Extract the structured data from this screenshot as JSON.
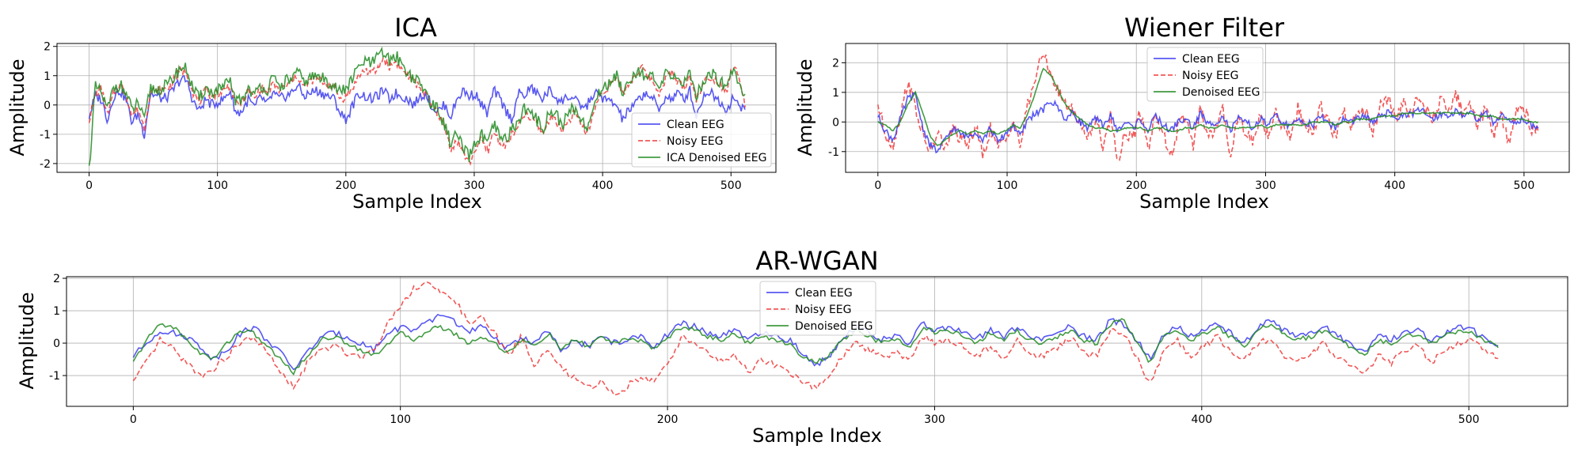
{
  "colors": {
    "clean": "#3b3bf0",
    "noisy": "#f03b3b",
    "denoised": "#228b22",
    "grid": "#b0b0b0"
  },
  "chart_data": [
    {
      "id": "ica",
      "type": "line",
      "title": "ICA",
      "xlabel": "Sample Index",
      "ylabel": "Amplitude",
      "xlim": [
        -25,
        535
      ],
      "ylim": [
        -2.3,
        2.1
      ],
      "xticks": [
        0,
        100,
        200,
        300,
        400,
        500
      ],
      "yticks": [
        -2,
        -1,
        0,
        1,
        2
      ],
      "grid": true,
      "legend_position": "lower-right",
      "n_samples": 512,
      "series": [
        {
          "name": "Clean EEG",
          "color": "#3b3bf0",
          "style": "solid",
          "values": [
            -0.4,
            0.3,
            0.2,
            -0.5,
            0.3,
            0.5,
            0.2,
            -0.6,
            -0.3,
            -1.0,
            0.4,
            0.3,
            0.2,
            0.3,
            0.6,
            0.9,
            0.8,
            0.1,
            -0.2,
            0.2,
            0.0,
            0.1,
            0.2,
            0.5,
            -0.3,
            -0.2,
            0.2,
            -0.1,
            0.3,
            0.0,
            0.4,
            0.2,
            0.3,
            0.4,
            0.7,
            0.3,
            0.4,
            0.5,
            0.4,
            0.3,
            0.2,
            -0.3,
            -0.5,
            0.0,
            0.4,
            0.3,
            0.2,
            0.3,
            0.5,
            0.2,
            0.4,
            0.3,
            0.2,
            0.0,
            0.3,
            0.4,
            -0.1,
            -0.2,
            0.0,
            -0.4,
            0.2,
            0.5,
            0.3,
            0.4,
            0.0,
            -0.3,
            0.5,
            0.2,
            -0.2,
            -0.5,
            0.4,
            0.3,
            0.6,
            0.4,
            0.2,
            0.5,
            0.3,
            0.1,
            0.3,
            0.2,
            0.0,
            -0.1,
            0.3,
            0.4,
            0.2,
            0.1,
            0.0,
            -0.5,
            -0.2,
            0.0,
            0.3,
            0.4,
            0.2,
            -0.2,
            0.3,
            0.2,
            0.4,
            0.2,
            0.5,
            -0.4,
            0.2,
            0.5,
            0.3,
            0.1,
            -0.2,
            0.3,
            -0.1,
            0.0
          ]
        },
        {
          "name": "Noisy EEG",
          "color": "#f03b3b",
          "style": "dashed",
          "values": [
            -0.5,
            0.3,
            0.6,
            -0.4,
            0.4,
            0.7,
            0.4,
            -0.4,
            -0.1,
            -0.8,
            0.5,
            0.5,
            0.5,
            0.6,
            0.9,
            1.2,
            1.1,
            0.4,
            0.1,
            0.5,
            0.3,
            0.4,
            0.5,
            0.7,
            0.0,
            0.1,
            0.5,
            0.2,
            0.6,
            0.4,
            0.7,
            0.5,
            0.6,
            0.8,
            1.0,
            0.6,
            0.8,
            0.9,
            0.8,
            0.7,
            0.6,
            0.2,
            0.3,
            0.6,
            1.0,
            1.2,
            1.1,
            1.2,
            1.6,
            1.3,
            1.5,
            1.2,
            1.0,
            0.8,
            0.6,
            0.3,
            -0.1,
            -0.3,
            -0.8,
            -1.5,
            -1.2,
            -1.6,
            -2.0,
            -1.5,
            -1.2,
            -1.6,
            -0.9,
            -1.3,
            -1.4,
            -1.0,
            -0.8,
            -0.3,
            -0.5,
            -0.6,
            -1.0,
            -0.5,
            -0.4,
            -0.9,
            -0.6,
            -0.3,
            -0.5,
            -1.0,
            -0.5,
            0.2,
            0.5,
            0.7,
            0.9,
            0.4,
            0.7,
            1.0,
            1.3,
            1.0,
            0.8,
            0.4,
            0.9,
            1.1,
            0.8,
            0.6,
            1.0,
            0.2,
            0.6,
            1.0,
            0.9,
            0.7,
            0.5,
            1.4,
            0.9,
            0.0
          ]
        },
        {
          "name": "ICA Denoised EEG",
          "color": "#228b22",
          "style": "solid",
          "values": [
            -2.2,
            0.6,
            0.4,
            -0.2,
            0.6,
            0.7,
            0.4,
            -0.2,
            0.1,
            -0.6,
            0.6,
            0.5,
            0.6,
            0.7,
            1.0,
            1.3,
            1.2,
            0.5,
            0.2,
            0.6,
            0.4,
            0.5,
            0.6,
            0.8,
            0.1,
            0.2,
            0.6,
            0.3,
            0.7,
            0.5,
            0.9,
            0.6,
            0.8,
            0.9,
            1.1,
            0.8,
            0.9,
            1.0,
            0.9,
            0.8,
            0.7,
            0.4,
            0.6,
            0.9,
            1.3,
            1.5,
            1.4,
            1.6,
            1.8,
            1.5,
            1.7,
            1.4,
            1.1,
            0.9,
            0.7,
            0.4,
            0.0,
            -0.2,
            -0.7,
            -1.3,
            -1.0,
            -1.5,
            -1.8,
            -1.3,
            -1.0,
            -1.4,
            -0.7,
            -1.1,
            -1.2,
            -0.8,
            -0.6,
            -0.1,
            -0.3,
            -0.5,
            -0.8,
            -0.3,
            -0.2,
            -0.7,
            -0.4,
            -0.1,
            -0.3,
            -0.8,
            -0.4,
            0.4,
            0.6,
            0.8,
            1.0,
            0.5,
            0.8,
            1.1,
            1.2,
            0.9,
            0.9,
            0.5,
            1.0,
            1.1,
            0.9,
            0.7,
            1.1,
            0.3,
            0.7,
            1.1,
            1.0,
            0.8,
            0.6,
            1.3,
            0.8,
            0.3
          ]
        }
      ]
    },
    {
      "id": "wiener",
      "type": "line",
      "title": "Wiener Filter",
      "xlabel": "Sample Index",
      "ylabel": "Amplitude",
      "xlim": [
        -25,
        535
      ],
      "ylim": [
        -1.7,
        2.65
      ],
      "xticks": [
        0,
        100,
        200,
        300,
        400,
        500
      ],
      "yticks": [
        -1,
        0,
        1,
        2
      ],
      "grid": true,
      "legend_position": "upper-center",
      "n_samples": 512,
      "series": [
        {
          "name": "Clean EEG",
          "color": "#3b3bf0",
          "style": "solid",
          "values": [
            0.2,
            -0.3,
            -0.6,
            0.1,
            0.8,
            0.9,
            -0.2,
            -0.8,
            -1.0,
            -0.6,
            -0.2,
            -0.4,
            -0.5,
            -0.3,
            -0.6,
            -0.2,
            -0.7,
            -0.4,
            -0.1,
            -0.5,
            0.1,
            0.3,
            0.4,
            0.7,
            0.5,
            0.1,
            0.3,
            0.0,
            -0.2,
            0.1,
            -0.1,
            0.2,
            -0.3,
            0.0,
            -0.2,
            0.1,
            -0.3,
            0.2,
            -0.1,
            -0.3,
            0.0,
            0.1,
            -0.2,
            0.3,
            -0.1,
            0.0,
            0.2,
            -0.3,
            0.1,
            0.0,
            -0.2,
            0.1,
            -0.1,
            0.2,
            0.0,
            -0.2,
            0.1,
            0.0,
            -0.1,
            0.2,
            0.0,
            -0.2,
            0.1,
            0.0,
            0.1,
            0.2,
            0.0,
            0.2,
            0.3,
            0.1,
            0.3,
            0.2,
            0.4,
            0.3,
            0.1,
            0.3,
            0.2,
            0.4,
            0.2,
            0.3,
            0.1,
            0.3,
            0.0,
            0.2,
            0.1,
            0.0,
            0.1,
            -0.1,
            -0.2
          ]
        },
        {
          "name": "Noisy EEG",
          "color": "#f03b3b",
          "style": "dashed",
          "values": [
            0.6,
            -0.4,
            -0.8,
            0.2,
            1.4,
            0.5,
            -0.5,
            -1.0,
            -0.4,
            -0.9,
            -0.2,
            -0.6,
            -0.8,
            -0.1,
            -1.2,
            -0.2,
            -0.9,
            -0.6,
            0.1,
            -0.8,
            0.6,
            1.5,
            2.3,
            1.7,
            1.0,
            0.6,
            0.4,
            -0.1,
            -0.5,
            0.1,
            -0.8,
            0.2,
            -1.3,
            -0.3,
            -0.6,
            0.4,
            -0.9,
            0.3,
            -0.4,
            -1.2,
            -0.2,
            0.2,
            -0.8,
            0.5,
            -0.6,
            -0.2,
            0.4,
            -1.1,
            0.2,
            -0.3,
            -0.7,
            0.3,
            -0.5,
            0.4,
            -0.2,
            -0.6,
            0.5,
            -0.3,
            -0.4,
            0.6,
            0.0,
            -0.5,
            0.4,
            -0.2,
            0.5,
            0.3,
            -0.4,
            0.6,
            0.8,
            0.0,
            0.7,
            0.2,
            0.9,
            0.4,
            0.1,
            0.8,
            0.3,
            1.0,
            0.2,
            0.6,
            -0.1,
            0.5,
            -0.5,
            0.4,
            -0.7,
            0.3,
            0.6,
            -0.2,
            -0.3
          ]
        },
        {
          "name": "Denoised EEG",
          "color": "#228b22",
          "style": "solid",
          "values": [
            0.0,
            -0.1,
            -0.3,
            0.0,
            0.6,
            1.0,
            0.3,
            -0.5,
            -0.8,
            -0.6,
            -0.4,
            -0.3,
            -0.4,
            -0.3,
            -0.4,
            -0.3,
            -0.4,
            -0.3,
            -0.1,
            -0.2,
            0.3,
            1.0,
            1.8,
            1.6,
            1.1,
            0.6,
            0.3,
            0.1,
            -0.1,
            -0.2,
            -0.2,
            -0.3,
            -0.3,
            -0.2,
            -0.2,
            -0.2,
            -0.3,
            -0.2,
            -0.2,
            -0.3,
            -0.3,
            -0.2,
            -0.2,
            -0.1,
            -0.2,
            -0.2,
            -0.1,
            -0.2,
            -0.2,
            -0.2,
            -0.2,
            -0.1,
            -0.2,
            -0.1,
            -0.1,
            -0.1,
            -0.1,
            -0.1,
            0.0,
            0.0,
            0.0,
            -0.1,
            0.0,
            0.0,
            0.1,
            0.1,
            0.1,
            0.2,
            0.2,
            0.2,
            0.3,
            0.3,
            0.3,
            0.3,
            0.3,
            0.3,
            0.3,
            0.3,
            0.3,
            0.3,
            0.2,
            0.2,
            0.2,
            0.1,
            0.1,
            0.1,
            0.1,
            0.0,
            0.0
          ]
        }
      ]
    },
    {
      "id": "arwgan",
      "type": "line",
      "title": "AR-WGAN",
      "xlabel": "Sample Index",
      "ylabel": "Amplitude",
      "xlim": [
        -25,
        537
      ],
      "ylim": [
        -1.95,
        2.05
      ],
      "xticks": [
        0,
        100,
        200,
        300,
        400,
        500
      ],
      "yticks": [
        -1,
        0,
        1,
        2
      ],
      "grid": true,
      "legend_position": "upper-center",
      "n_samples": 512,
      "series": [
        {
          "name": "Clean EEG",
          "color": "#3b3bf0",
          "style": "solid",
          "values": [
            -0.4,
            0.0,
            0.4,
            0.3,
            0.2,
            -0.1,
            -0.5,
            -0.2,
            0.3,
            0.5,
            0.1,
            -0.3,
            -0.8,
            -0.3,
            0.2,
            0.3,
            0.2,
            0.0,
            -0.2,
            0.3,
            0.5,
            0.4,
            0.6,
            0.9,
            0.7,
            0.3,
            0.5,
            0.2,
            -0.2,
            0.2,
            0.0,
            0.4,
            -0.3,
            0.1,
            -0.1,
            0.2,
            0.0,
            0.1,
            0.2,
            -0.1,
            0.3,
            0.6,
            0.5,
            0.3,
            0.2,
            0.4,
            0.1,
            0.3,
            0.2,
            0.1,
            -0.3,
            -0.7,
            -0.4,
            0.2,
            0.5,
            0.3,
            0.1,
            0.2,
            0.0,
            0.6,
            0.4,
            0.5,
            0.3,
            0.1,
            0.4,
            0.2,
            0.5,
            0.2,
            0.1,
            0.3,
            0.5,
            0.2,
            0.1,
            0.7,
            0.6,
            0.1,
            -0.5,
            0.3,
            0.5,
            0.2,
            0.4,
            0.6,
            0.3,
            0.0,
            0.5,
            0.7,
            0.4,
            0.2,
            0.3,
            0.5,
            0.2,
            0.0,
            -0.3,
            0.2,
            0.1,
            0.3,
            0.4,
            0.1,
            0.3,
            0.5,
            0.4,
            0.2,
            -0.1
          ]
        },
        {
          "name": "Noisy EEG",
          "color": "#f03b3b",
          "style": "dashed",
          "values": [
            -1.2,
            -0.6,
            0.1,
            -0.2,
            -0.6,
            -1.0,
            -0.8,
            -0.4,
            0.0,
            0.2,
            -0.3,
            -0.9,
            -1.4,
            -0.6,
            -0.2,
            -0.1,
            -0.3,
            -0.4,
            -0.2,
            0.6,
            1.2,
            1.7,
            1.9,
            1.5,
            1.4,
            0.6,
            0.8,
            0.3,
            -0.4,
            0.2,
            -0.7,
            -0.2,
            -0.8,
            -1.1,
            -1.4,
            -1.2,
            -1.6,
            -1.3,
            -1.0,
            -1.2,
            -0.6,
            0.2,
            0.0,
            -0.3,
            -0.6,
            -0.4,
            -0.9,
            -0.5,
            -0.7,
            -0.9,
            -1.2,
            -1.4,
            -1.0,
            -0.4,
            0.0,
            -0.2,
            -0.4,
            -0.3,
            -0.5,
            0.2,
            0.0,
            0.1,
            -0.1,
            -0.4,
            -0.1,
            -0.5,
            0.1,
            -0.3,
            -0.4,
            -0.2,
            0.2,
            -0.3,
            -0.4,
            0.4,
            0.3,
            -0.4,
            -1.3,
            -0.2,
            0.1,
            -0.4,
            -0.1,
            0.2,
            -0.3,
            -0.5,
            0.0,
            0.1,
            -0.4,
            -0.6,
            -0.3,
            0.0,
            -0.5,
            -0.7,
            -1.0,
            -0.4,
            -0.6,
            -0.2,
            -0.1,
            -0.6,
            -0.2,
            0.0,
            0.1,
            -0.2,
            -0.5
          ]
        },
        {
          "name": "Denoised EEG",
          "color": "#228b22",
          "style": "solid",
          "values": [
            -0.6,
            0.1,
            0.6,
            0.5,
            0.1,
            -0.3,
            -0.5,
            0.0,
            0.4,
            0.3,
            -0.1,
            -0.5,
            -0.9,
            -0.4,
            0.1,
            0.2,
            0.0,
            -0.2,
            -0.4,
            0.0,
            0.3,
            0.1,
            0.4,
            0.5,
            0.3,
            0.0,
            0.2,
            0.0,
            -0.3,
            0.1,
            -0.1,
            0.3,
            -0.2,
            0.1,
            -0.1,
            0.2,
            0.0,
            0.1,
            0.1,
            -0.2,
            0.2,
            0.5,
            0.4,
            0.2,
            0.1,
            0.3,
            0.0,
            0.2,
            0.1,
            0.0,
            -0.4,
            -0.6,
            -0.4,
            0.1,
            0.4,
            0.2,
            0.0,
            0.1,
            -0.1,
            0.5,
            0.3,
            0.4,
            0.2,
            0.0,
            0.3,
            0.1,
            0.4,
            0.1,
            0.0,
            0.2,
            0.4,
            0.1,
            0.0,
            0.6,
            0.7,
            0.0,
            -0.6,
            0.2,
            0.4,
            0.1,
            0.3,
            0.5,
            0.2,
            -0.1,
            0.4,
            0.6,
            0.3,
            0.1,
            0.2,
            0.4,
            0.1,
            -0.1,
            -0.4,
            0.1,
            0.0,
            0.2,
            0.3,
            0.0,
            0.2,
            0.4,
            0.3,
            0.1,
            -0.1
          ]
        }
      ]
    }
  ]
}
